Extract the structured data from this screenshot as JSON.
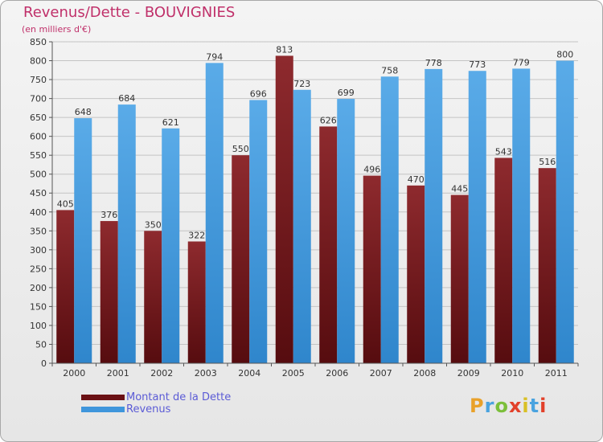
{
  "title": "Revenus/Dette - BOUVIGNIES",
  "subtitle": "(en milliers d'€)",
  "colors": {
    "debt": "#7b1e22",
    "revenue": "#4a9fe0",
    "grid": "#c4c4c4",
    "title": "#c0306a",
    "legend_text": "#5b5bd6"
  },
  "legend": {
    "debt_label": "Montant de la Dette",
    "revenue_label": "Revenus"
  },
  "logo": {
    "text": "Proxiti",
    "letter_colors": [
      "#e9a12a",
      "#4aa3df",
      "#7bbf3a",
      "#e2402a",
      "#d8c025",
      "#4aa3df",
      "#e2402a"
    ]
  },
  "chart_data": {
    "type": "bar",
    "categories": [
      "2000",
      "2001",
      "2002",
      "2003",
      "2004",
      "2005",
      "2006",
      "2007",
      "2008",
      "2009",
      "2010",
      "2011"
    ],
    "series": [
      {
        "name": "Montant de la Dette",
        "values": [
          405,
          376,
          350,
          322,
          550,
          813,
          626,
          496,
          470,
          445,
          543,
          516
        ]
      },
      {
        "name": "Revenus",
        "values": [
          648,
          684,
          621,
          794,
          696,
          723,
          699,
          758,
          778,
          773,
          779,
          800
        ]
      }
    ],
    "ylim": [
      0,
      850
    ],
    "yticks": [
      0,
      50,
      100,
      150,
      200,
      250,
      300,
      350,
      400,
      450,
      500,
      550,
      600,
      650,
      700,
      750,
      800,
      850
    ],
    "grid": true,
    "legend_position": "bottom-left"
  }
}
